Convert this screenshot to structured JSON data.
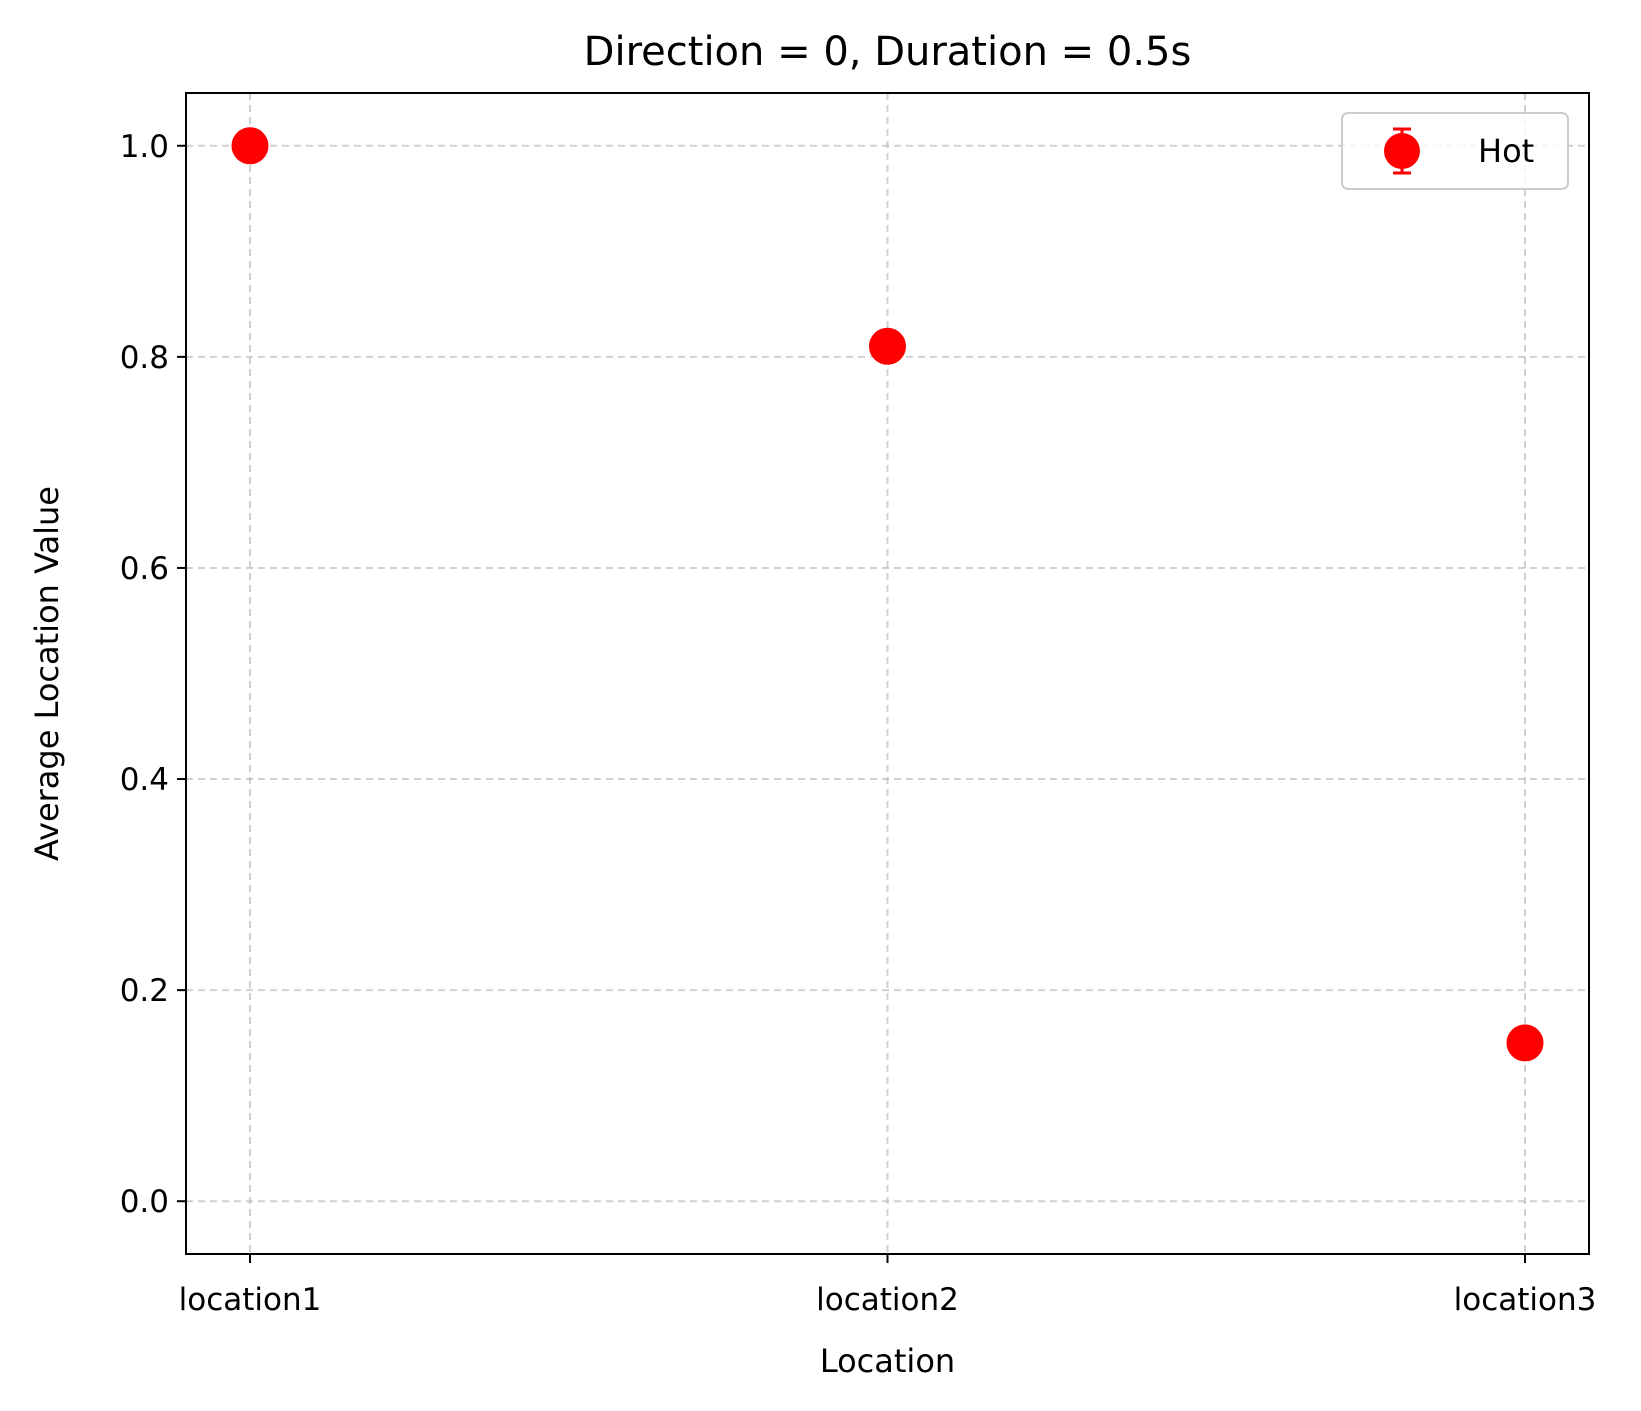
{
  "chart_data": {
    "type": "scatter",
    "title": "Direction = 0, Duration = 0.5s",
    "xlabel": "Location",
    "ylabel": "Average Location Value",
    "categories": [
      "location1",
      "location2",
      "location3"
    ],
    "ylim": [
      -0.05,
      1.05
    ],
    "yticks": [
      0.0,
      0.2,
      0.4,
      0.6,
      0.8,
      1.0
    ],
    "ytick_labels": [
      "0.0",
      "0.2",
      "0.4",
      "0.6",
      "0.8",
      "1.0"
    ],
    "grid": true,
    "legend_position": "top-right",
    "series": [
      {
        "name": "Hot",
        "color": "#ff0000",
        "marker": "circle",
        "values": [
          1.0,
          0.81,
          0.15
        ]
      }
    ]
  }
}
